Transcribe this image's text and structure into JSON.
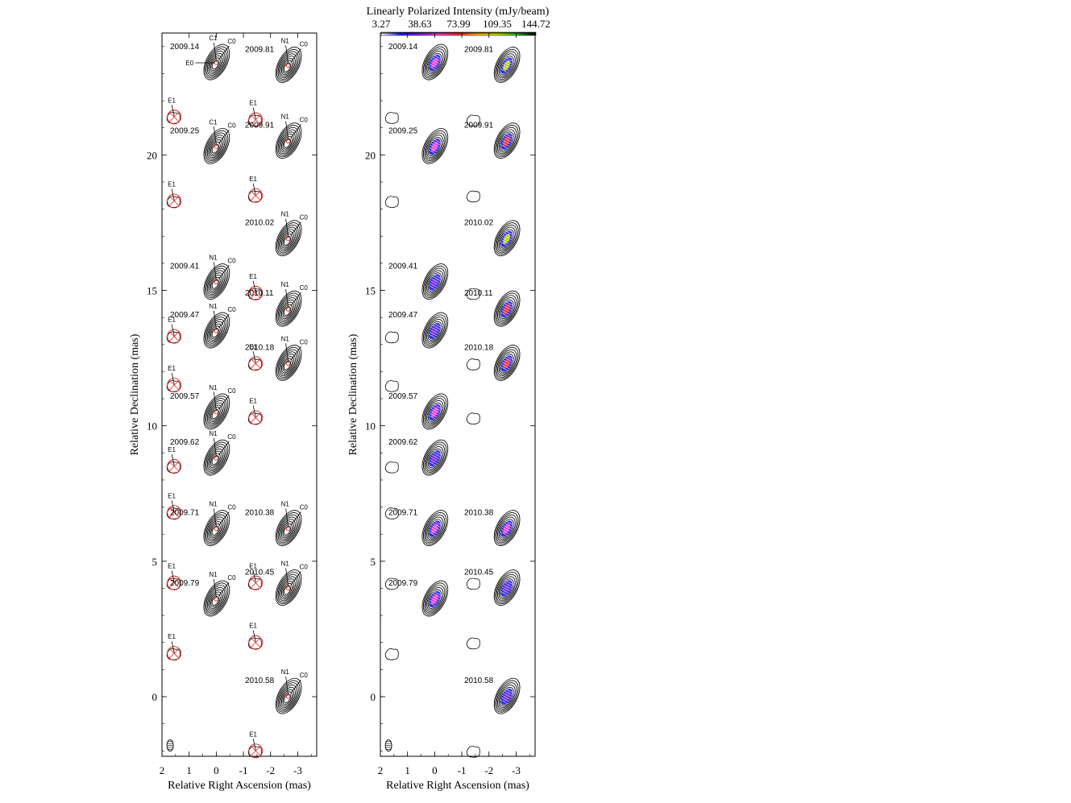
{
  "colorbar": {
    "title": "Linearly Polarized Intensity (mJy/beam)",
    "ticks": [
      "3.27",
      "38.63",
      "73.99",
      "109.35",
      "144.72"
    ],
    "colors": [
      "#ffffff",
      "#2020ff",
      "#7a2bd6",
      "#ff40d0",
      "#ff3030",
      "#ffb400",
      "#c8e000",
      "#20c020",
      "#000000"
    ]
  },
  "panels": [
    {
      "id": "left",
      "content": "total-intensity contours with model-fit components",
      "xlabel": "Relative Right Ascension (mas)",
      "ylabel": "Relative Declination (mas)",
      "xticks": [
        "2",
        "1",
        "0",
        "-1",
        "-2",
        "-3"
      ],
      "yticks": [
        "0",
        "5",
        "10",
        "15",
        "20"
      ],
      "xlim": [
        2.0,
        -3.7
      ],
      "ylim": [
        -2.2,
        24.5
      ]
    },
    {
      "id": "right",
      "content": "total-intensity contours with linearly polarized intensity and EVPA vectors",
      "xlabel": "Relative Right Ascension (mas)",
      "ylabel": "Relative Declination (mas)",
      "xticks": [
        "2",
        "1",
        "0",
        "-1",
        "-2",
        "-3"
      ],
      "yticks": [
        "0",
        "5",
        "10",
        "15",
        "20"
      ],
      "xlim": [
        2.0,
        -3.7
      ],
      "ylim": [
        -2.2,
        24.5
      ]
    }
  ],
  "epochs": [
    {
      "date": "2009.14",
      "col": "a",
      "y0": 23.4,
      "core_label": "C1",
      "jet_label": "C0",
      "extra_label": "E0",
      "e1_label": "E1",
      "pol_peak_mJy": 40
    },
    {
      "date": "2009.25",
      "col": "a",
      "y0": 20.3,
      "core_label": "C1",
      "jet_label": "C0",
      "e1_label": "E1",
      "pol_peak_mJy": 40
    },
    {
      "date": "2009.41",
      "col": "a",
      "y0": 15.3,
      "core_label": "N1",
      "jet_label": "C0",
      "e1_label": "E1",
      "pol_peak_mJy": 30
    },
    {
      "date": "2009.47",
      "col": "a",
      "y0": 13.5,
      "core_label": "N1",
      "jet_label": "C0",
      "e1_label": "E1",
      "pol_peak_mJy": 30
    },
    {
      "date": "2009.57",
      "col": "a",
      "y0": 10.5,
      "core_label": "N1",
      "jet_label": "C0",
      "e1_label": "E1",
      "pol_peak_mJy": 60
    },
    {
      "date": "2009.62",
      "col": "a",
      "y0": 8.8,
      "core_label": "N1",
      "jet_label": "C0",
      "e1_label": "E1",
      "pol_peak_mJy": 25
    },
    {
      "date": "2009.71",
      "col": "a",
      "y0": 6.2,
      "core_label": "N1",
      "jet_label": "C0",
      "e1_label": "E1",
      "pol_peak_mJy": 60
    },
    {
      "date": "2009.79",
      "col": "a",
      "y0": 3.6,
      "core_label": "N1",
      "jet_label": "C0",
      "e1_label": "E1",
      "pol_peak_mJy": 40
    },
    {
      "date": "2009.81",
      "col": "b",
      "y0": 23.3,
      "core_label": "N1",
      "jet_label": "C0",
      "e1_label": "E1",
      "pol_peak_mJy": 120
    },
    {
      "date": "2009.91",
      "col": "b",
      "y0": 20.5,
      "core_label": "N1",
      "jet_label": "C0",
      "e1_label": "E1",
      "pol_peak_mJy": 80
    },
    {
      "date": "2010.02",
      "col": "b",
      "y0": 16.9,
      "core_label": "N1",
      "jet_label": "C0",
      "e1_label": "E1",
      "pol_peak_mJy": 140
    },
    {
      "date": "2010.11",
      "col": "b",
      "y0": 14.3,
      "core_label": "N1",
      "jet_label": "C0",
      "e1_label": "E1",
      "pol_peak_mJy": 70
    },
    {
      "date": "2010.18",
      "col": "b",
      "y0": 12.3,
      "core_label": "N1",
      "jet_label": "C0",
      "e1_label": "E1",
      "pol_peak_mJy": 70
    },
    {
      "date": "2010.38",
      "col": "b",
      "y0": 6.2,
      "core_label": "N1",
      "jet_label": "C0",
      "e1_label": "E1",
      "pol_peak_mJy": 50
    },
    {
      "date": "2010.45",
      "col": "b",
      "y0": 4.0,
      "core_label": "N1",
      "jet_label": "C0",
      "e1_label": "E1",
      "pol_peak_mJy": 30
    },
    {
      "date": "2010.58",
      "col": "b",
      "y0": 0.0,
      "core_label": "N1",
      "jet_label": "C0",
      "e1_label": "E1",
      "pol_peak_mJy": 30
    }
  ]
}
